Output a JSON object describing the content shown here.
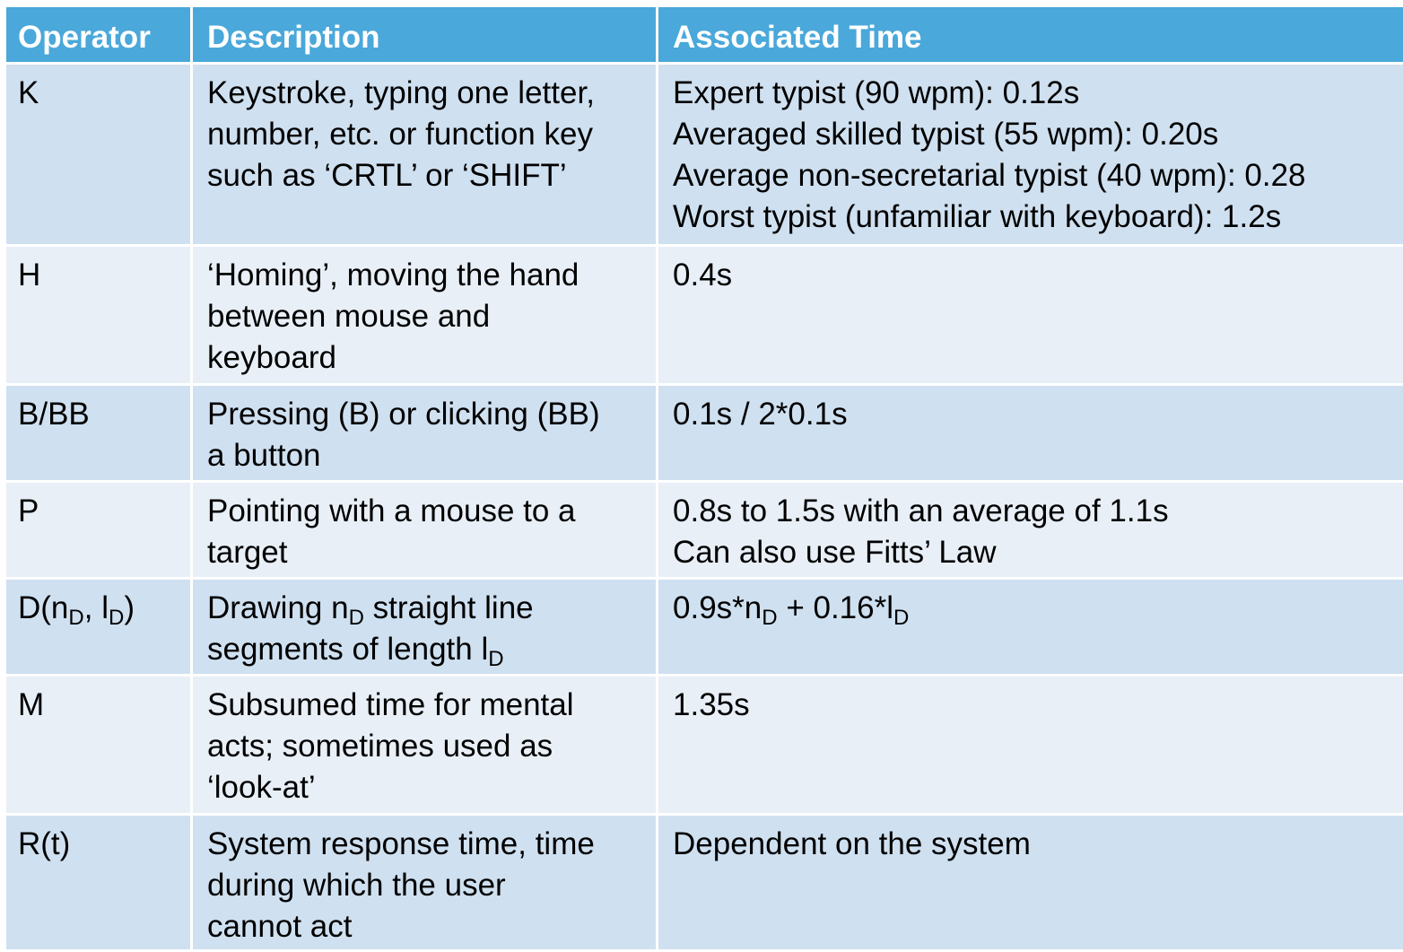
{
  "table": {
    "headers": {
      "operator": "Operator",
      "description": "Description",
      "time": "Associated Time"
    },
    "rows": [
      {
        "operator": "K",
        "description": [
          "Keystroke, typing one letter,",
          "number, etc. or function key",
          "such as ‘CRTL’ or ‘SHIFT’"
        ],
        "time": [
          "Expert typist (90 wpm): 0.12s",
          "Averaged skilled typist (55 wpm): 0.20s",
          "Average non-secretarial typist (40 wpm): 0.28",
          "Worst typist (unfamiliar with keyboard): 1.2s"
        ]
      },
      {
        "operator": "H",
        "description": [
          "‘Homing’, moving the hand",
          "between mouse and",
          "keyboard"
        ],
        "time": [
          "0.4s"
        ]
      },
      {
        "operator": "B/BB",
        "description": [
          "Pressing (B) or clicking (BB)",
          "a button"
        ],
        "time": [
          "0.1s / 2*0.1s"
        ]
      },
      {
        "operator": "P",
        "description": [
          "Pointing with a mouse to a",
          "target"
        ],
        "time": [
          "0.8s to 1.5s with an average of 1.1s",
          "Can also use Fitts’ Law"
        ]
      },
      {
        "operator_parts": [
          "D(n",
          "D",
          ", l",
          "D",
          ")"
        ],
        "description_parts": [
          "Drawing n",
          "D",
          " straight line",
          "segments of length l",
          "D"
        ],
        "time_parts": [
          "0.9s*n",
          "D",
          " + 0.16*l",
          "D"
        ]
      },
      {
        "operator": "M",
        "description": [
          "Subsumed time for mental",
          "acts; sometimes used as",
          "‘look-at’"
        ],
        "time": [
          "1.35s"
        ]
      },
      {
        "operator": "R(t)",
        "description": [
          "System response time, time",
          "during which the user",
          "cannot act"
        ],
        "time": [
          "Dependent on the system"
        ]
      }
    ]
  }
}
